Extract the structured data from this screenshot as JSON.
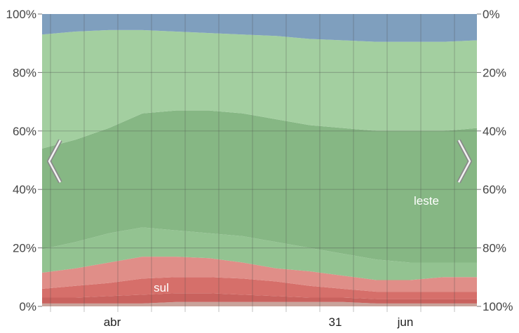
{
  "chart_data": {
    "type": "area",
    "stacking": "percent",
    "grid": true,
    "legend": "none",
    "x_tick_labels": [
      "abr",
      "31",
      "jun"
    ],
    "y_left_ticks": [
      "0%",
      "20%",
      "40%",
      "60%",
      "80%",
      "100%"
    ],
    "y_right_ticks": [
      "100%",
      "80%",
      "60%",
      "40%",
      "20%",
      "0%"
    ],
    "ylim": [
      0,
      100
    ],
    "series_labels": {
      "sul": "sul",
      "leste": "leste"
    },
    "colors": {
      "sul_dark": "#c9625e",
      "sul_mid": "#d66f6a",
      "sul_light": "#e08e88",
      "sul_base": "#c9a39b",
      "leste_dark": "#86b784",
      "leste_mid": "#93c391",
      "leste_light": "#a3cfa0",
      "norte": "#7f9fbe",
      "gridline": "#4a4a4a"
    },
    "boundaries": [
      {
        "name": "sul_base",
        "fill": "sul_base",
        "values": [
          1,
          1,
          1,
          1,
          1.5,
          1.5,
          1.5,
          1.5,
          1.5,
          1.5,
          1,
          1,
          1,
          1
        ]
      },
      {
        "name": "sul_dark",
        "fill": "sul_dark",
        "values": [
          3,
          3,
          3.5,
          4,
          4.5,
          4.5,
          4,
          3.5,
          3,
          3,
          2.5,
          2.5,
          2.5,
          2.5
        ]
      },
      {
        "name": "sul_mid",
        "fill": "sul_mid",
        "values": [
          6,
          7,
          8,
          9.5,
          10,
          10,
          9.5,
          8.5,
          7,
          6,
          5,
          5,
          5,
          5
        ]
      },
      {
        "name": "sul_light",
        "fill": "sul_light",
        "values": [
          11.5,
          13,
          15,
          17,
          17,
          16.5,
          15,
          13,
          12,
          10.5,
          9,
          9,
          10,
          10
        ]
      },
      {
        "name": "leste_band1",
        "fill": "leste_mid",
        "values": [
          19.5,
          22,
          25,
          27,
          26,
          25,
          24,
          22,
          20,
          18,
          16,
          15,
          15,
          15
        ]
      },
      {
        "name": "leste_band2",
        "fill": "leste_dark",
        "values": [
          54,
          57,
          61,
          66,
          67,
          67,
          66,
          64,
          62,
          61,
          60,
          60,
          60,
          61
        ]
      },
      {
        "name": "leste_band3",
        "fill": "leste_light",
        "values": [
          93,
          94,
          94.5,
          94.5,
          94,
          93.5,
          93,
          92.5,
          91.5,
          91,
          90.5,
          90.5,
          90.5,
          91
        ]
      },
      {
        "name": "norte",
        "fill": "norte",
        "values": [
          100,
          100,
          100,
          100,
          100,
          100,
          100,
          100,
          100,
          100,
          100,
          100,
          100,
          100
        ]
      }
    ]
  },
  "nav": {
    "prev_icon": "chevron-left-icon",
    "next_icon": "chevron-right-icon"
  }
}
